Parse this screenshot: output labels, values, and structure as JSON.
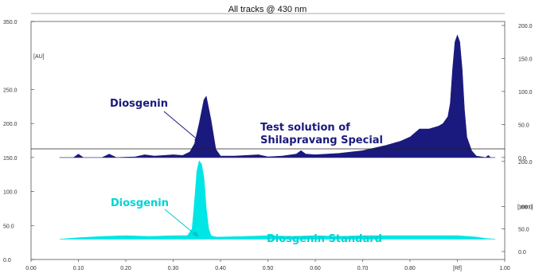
{
  "chart_data": {
    "type": "line",
    "title": "All tracks @ 430 nm",
    "x_unit": "[Rf]",
    "x_range": [
      0.0,
      1.0
    ],
    "x_ticks": [
      "0.00",
      "0.10",
      "0.20",
      "0.30",
      "0.40",
      "0.50",
      "0.60",
      "0.70",
      "0.80",
      "[Rf]",
      "1.00"
    ],
    "left_axis": {
      "unit": "[AU]",
      "range": [
        0,
        350
      ],
      "ticks": [
        "350.0",
        "250.0",
        "200.0",
        "150.0",
        "100.0",
        "50.0",
        "0.0"
      ]
    },
    "right_axis_top": {
      "range": [
        0,
        200
      ],
      "ticks": [
        "200.0",
        "150.0",
        "100.0",
        "50.0",
        "0.0"
      ]
    },
    "right_axis_bottom": {
      "unit": "[ mm ]",
      "range": [
        0,
        200
      ],
      "ticks": [
        "200.0",
        "100.0",
        "50.0",
        "0.0"
      ]
    },
    "grid": false,
    "series": [
      {
        "name": "Test solution of Shilapravang Special",
        "color": "#1a1a7e",
        "baseline": 150,
        "x": [
          0.06,
          0.09,
          0.1,
          0.11,
          0.15,
          0.165,
          0.18,
          0.22,
          0.24,
          0.26,
          0.28,
          0.3,
          0.32,
          0.335,
          0.345,
          0.355,
          0.365,
          0.37,
          0.38,
          0.39,
          0.4,
          0.43,
          0.48,
          0.5,
          0.53,
          0.56,
          0.57,
          0.58,
          0.6,
          0.65,
          0.7,
          0.75,
          0.78,
          0.8,
          0.81,
          0.82,
          0.84,
          0.86,
          0.87,
          0.88,
          0.885,
          0.89,
          0.895,
          0.9,
          0.905,
          0.91,
          0.915,
          0.92,
          0.93,
          0.94,
          0.96,
          0.965,
          0.97,
          0.98
        ],
        "y": [
          150,
          150,
          155,
          150,
          150,
          155,
          150,
          151,
          154,
          152,
          153,
          154,
          153,
          158,
          170,
          200,
          235,
          240,
          205,
          162,
          152,
          152,
          154,
          151,
          152,
          155,
          160,
          155,
          154,
          156,
          160,
          168,
          174,
          180,
          186,
          192,
          192,
          196,
          200,
          210,
          230,
          280,
          320,
          330,
          320,
          280,
          220,
          180,
          160,
          152,
          150,
          153,
          150,
          150
        ]
      },
      {
        "name": "Diosgenin Standard",
        "color": "#00e5e5",
        "baseline": 30,
        "x": [
          0.06,
          0.1,
          0.15,
          0.2,
          0.25,
          0.3,
          0.33,
          0.34,
          0.345,
          0.35,
          0.355,
          0.36,
          0.365,
          0.37,
          0.375,
          0.38,
          0.39,
          0.4,
          0.45,
          0.5,
          0.55,
          0.6,
          0.65,
          0.7,
          0.75,
          0.8,
          0.85,
          0.9,
          0.94,
          0.96,
          0.98
        ],
        "y": [
          30,
          32,
          34,
          35,
          34,
          35,
          35,
          45,
          85,
          130,
          145,
          140,
          120,
          75,
          45,
          35,
          33,
          33,
          34,
          35,
          34,
          35,
          34,
          35,
          35,
          35,
          35,
          35,
          33,
          31,
          30
        ]
      }
    ],
    "annotations": {
      "diosgenin_top": "Diosgenin",
      "test_line1": "Test solution of",
      "test_line2": "Shilapravang Special",
      "diosgenin_bottom": "Diosgenin",
      "standard": "Diosgenin Standard"
    },
    "colors": {
      "top_label": "#1a1a7e",
      "bottom_label": "#00d4d4",
      "axes": "#333333"
    }
  }
}
